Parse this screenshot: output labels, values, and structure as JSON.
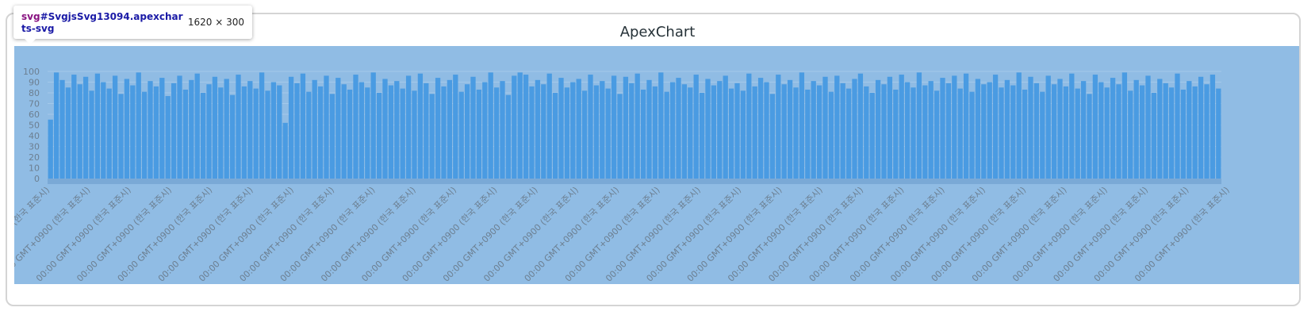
{
  "devtools_tooltip": {
    "tag": "svg",
    "selector_rest": "#SvgjsSvg13094.apexcharts-svg",
    "dimensions": "1620 × 300"
  },
  "chart_data": {
    "type": "bar",
    "title": "ApexChart",
    "xlabel": "",
    "ylabel": "",
    "ylim": [
      0,
      100
    ],
    "yticks": [
      0,
      10,
      20,
      30,
      40,
      50,
      60,
      70,
      80,
      90,
      100
    ],
    "x_tick_labels": [
      "00:00 GMT+0900 (한국 표준시)",
      "00:00 GMT+0900 (한국 표준시)",
      "00:00 GMT+0900 (한국 표준시)",
      "00:00 GMT+0900 (한국 표준시)",
      "00:00 GMT+0900 (한국 표준시)",
      "00:00 GMT+0900 (한국 표준시)",
      "00:00 GMT+0900 (한국 표준시)",
      "00:00 GMT+0900 (한국 표준시)",
      "00:00 GMT+0900 (한국 표준시)",
      "00:00 GMT+0900 (한국 표준시)",
      "00:00 GMT+0900 (한국 표준시)",
      "00:00 GMT+0900 (한국 표준시)",
      "00:00 GMT+0900 (한국 표준시)",
      "00:00 GMT+0900 (한국 표준시)",
      "00:00 GMT+0900 (한국 표준시)",
      "00:00 GMT+0900 (한국 표준시)",
      "00:00 GMT+0900 (한국 표준시)",
      "00:00 GMT+0900 (한국 표준시)",
      "00:00 GMT+0900 (한국 표준시)",
      "00:00 GMT+0900 (한국 표준시)",
      "00:00 GMT+0900 (한국 표준시)",
      "00:00 GMT+0900 (한국 표준시)",
      "00:00 GMT+0900 (한국 표준시)",
      "00:00 GMT+0900 (한국 표준시)",
      "00:00 GMT+0900 (한국 표준시)",
      "00:00 GMT+0900 (한국 표준시)",
      "00:00 GMT+0900 (한국 표준시)",
      "00:00 GMT+0900 (한국 표준시)",
      "00:00 GMT+0900 (한국 표준시)",
      "00:00 GMT+0900 (한국 표준시)"
    ],
    "series": [
      {
        "values": [
          55,
          99,
          92,
          85,
          97,
          88,
          95,
          82,
          98,
          90,
          84,
          96,
          79,
          93,
          87,
          99,
          81,
          91,
          86,
          94,
          77,
          89,
          96,
          83,
          92,
          98,
          80,
          88,
          95,
          85,
          93,
          78,
          97,
          86,
          91,
          84,
          99,
          82,
          90,
          87,
          52,
          95,
          89,
          98,
          81,
          92,
          86,
          96,
          79,
          94,
          88,
          83,
          97,
          90,
          85,
          99,
          80,
          93,
          87,
          91,
          84,
          96,
          82,
          98,
          89,
          79,
          94,
          86,
          92,
          97,
          81,
          88,
          95,
          83,
          90,
          99,
          85,
          91,
          78,
          96,
          99,
          97,
          86,
          92,
          88,
          98,
          80,
          94,
          85,
          90,
          93,
          82,
          97,
          87,
          91,
          84,
          96,
          79,
          95,
          89,
          98,
          83,
          92,
          86,
          99,
          81,
          90,
          94,
          88,
          85,
          97,
          80,
          93,
          87,
          91,
          96,
          84,
          89,
          82,
          98,
          86,
          94,
          90,
          79,
          97,
          88,
          92,
          85,
          99,
          83,
          91,
          87,
          95,
          81,
          96,
          89,
          84,
          93,
          98,
          86,
          80,
          92,
          88,
          95,
          83,
          97,
          90,
          85,
          99,
          87,
          91,
          82,
          94,
          89,
          96,
          84,
          98,
          81,
          93,
          88,
          90,
          97,
          85,
          92,
          87,
          99,
          83,
          95,
          89,
          81,
          96,
          88,
          93,
          86,
          98,
          84,
          91,
          79,
          97,
          90,
          85,
          94,
          88,
          99,
          82,
          92,
          87,
          96,
          80,
          93,
          89,
          85,
          98,
          83,
          91,
          86,
          95,
          88,
          97,
          84
        ]
      }
    ],
    "grid": true,
    "colors": {
      "plot_background": "#90bce4",
      "bars": "#4a9be2",
      "gridlines": "#a3c8ea",
      "axis_text": "#6c7f91",
      "baseline_band": "#7aa9d6",
      "title": "#263238"
    }
  }
}
